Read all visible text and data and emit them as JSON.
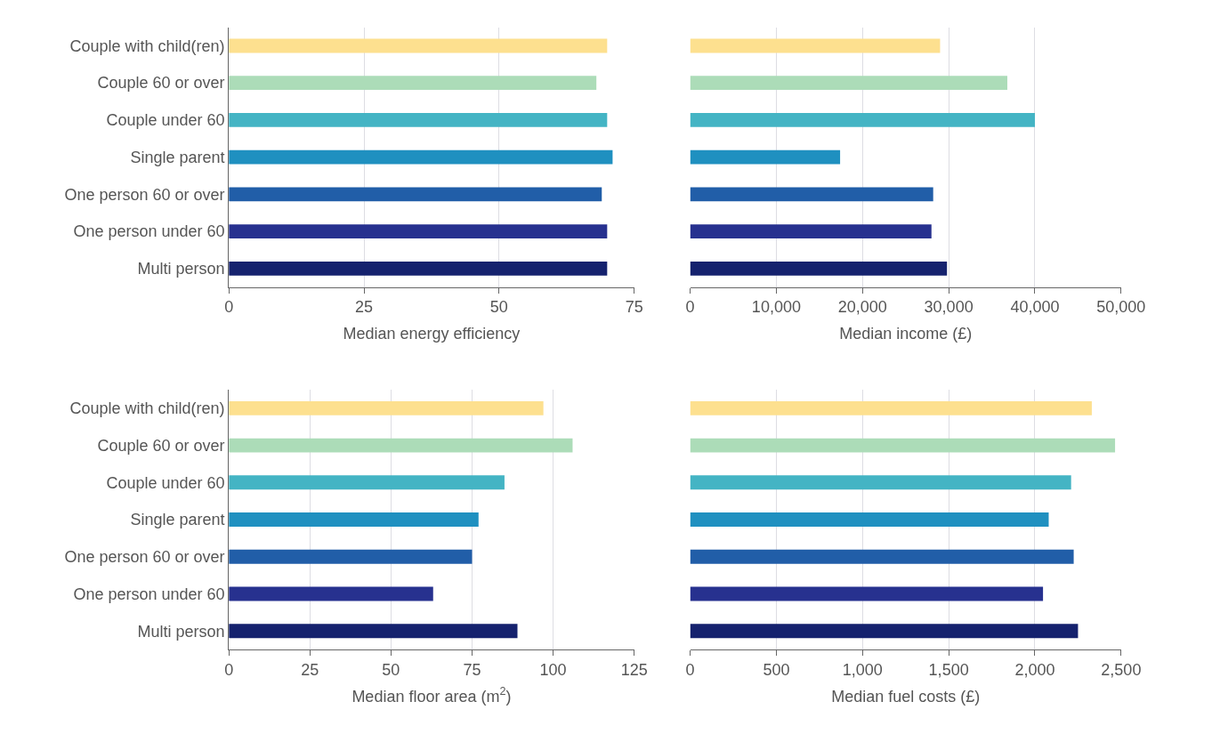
{
  "chart_data": [
    {
      "type": "bar",
      "orientation": "horizontal",
      "xlabel": "Median energy efficiency",
      "categories": [
        "Couple with child(ren)",
        "Couple 60 or over",
        "Couple under 60",
        "Single parent",
        "One person 60 or over",
        "One person under 60",
        "Multi person"
      ],
      "values": [
        70,
        68,
        70,
        71,
        69,
        70,
        70
      ],
      "colors": [
        "#fde08f",
        "#acdcb8",
        "#44b4c4",
        "#1f90c0",
        "#215ea8",
        "#27318f",
        "#15226e"
      ],
      "xlim": [
        0,
        75
      ],
      "xticks": [
        0,
        25,
        50,
        75
      ],
      "grid": "x"
    },
    {
      "type": "bar",
      "orientation": "horizontal",
      "xlabel": "Median income (£)",
      "categories": [
        null,
        null,
        null,
        null,
        null,
        null,
        null
      ],
      "values": [
        29000,
        36800,
        40000,
        17400,
        28200,
        28000,
        29800
      ],
      "colors": [
        "#fde08f",
        "#acdcb8",
        "#44b4c4",
        "#1f90c0",
        "#215ea8",
        "#27318f",
        "#15226e"
      ],
      "xlim": [
        0,
        50000
      ],
      "xticks": [
        0,
        {
          "value": 10000,
          "label": "10,000"
        },
        {
          "value": 20000,
          "label": "20,000"
        },
        {
          "value": 30000,
          "label": "30,000"
        },
        {
          "value": 40000,
          "label": "40,000"
        },
        {
          "value": 50000,
          "label": "50,000"
        }
      ],
      "grid": "x",
      "tick_labels": "x"
    },
    {
      "type": "bar",
      "orientation": "horizontal",
      "xlabel": "Median floor area (m$^{2}$)",
      "categories": [
        "Couple with child(ren)",
        "Couple 60 or over",
        "Couple under 60",
        "Single parent",
        "One person 60 or over",
        "One person under 60",
        "Multi person"
      ],
      "values": [
        97,
        106,
        85,
        77,
        75,
        63,
        89
      ],
      "colors": [
        "#fde08f",
        "#acdcb8",
        "#44b4c4",
        "#1f90c0",
        "#215ea8",
        "#27318f",
        "#15226e"
      ],
      "xlim": [
        0,
        125
      ],
      "xticks": [
        0,
        25,
        50,
        75,
        100,
        125
      ],
      "grid": "x"
    },
    {
      "type": "bar",
      "orientation": "horizontal",
      "xlabel": "Median fuel costs (£)",
      "categories": [
        null,
        null,
        null,
        null,
        null,
        null,
        null
      ],
      "values": [
        2330,
        2465,
        2210,
        2080,
        2225,
        2047,
        2250
      ],
      "colors": [
        "#fde08f",
        "#acdcb8",
        "#44b4c4",
        "#1f90c0",
        "#215ea8",
        "#27318f",
        "#15226e"
      ],
      "xlim": [
        0,
        2500
      ],
      "xticks": [
        0,
        500,
        {
          "value": 1000,
          "label": "1,000"
        },
        {
          "value": 1500,
          "label": "1,500"
        },
        {
          "value": 2000,
          "label": "2,000"
        },
        {
          "value": 2500,
          "label": "2,500"
        }
      ],
      "grid": "x",
      "tick_labels": "x"
    }
  ]
}
